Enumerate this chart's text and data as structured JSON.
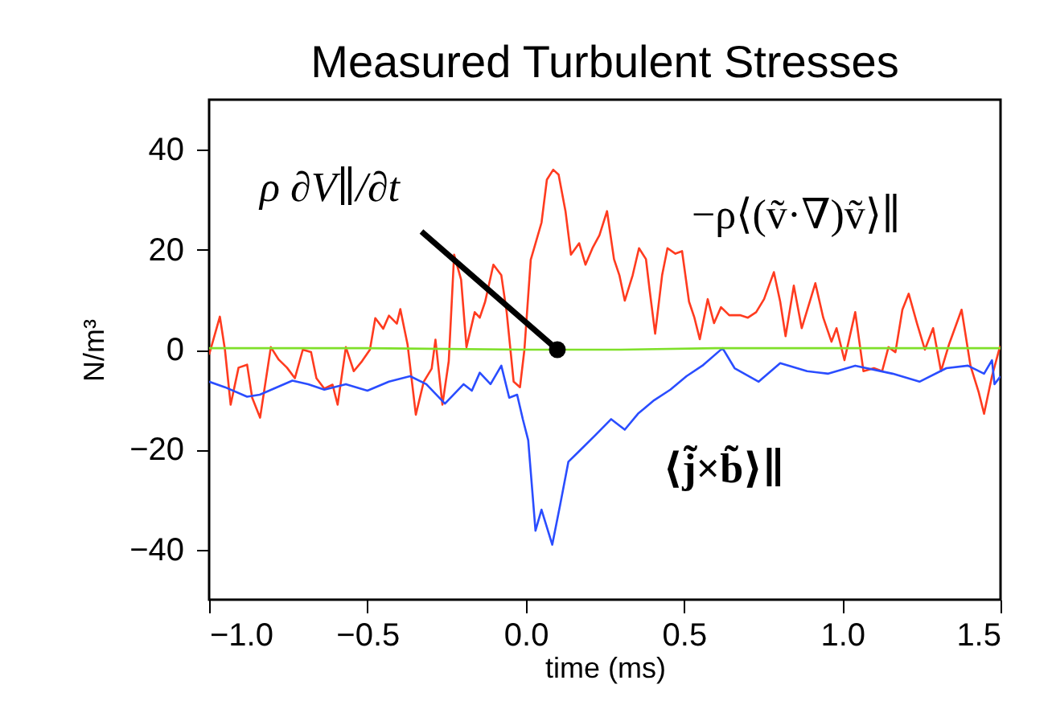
{
  "chart_data": {
    "type": "line",
    "title": "Measured Turbulent Stresses",
    "xlabel": "time (ms)",
    "ylabel": "N/m³",
    "xlim": [
      -1.0,
      1.5
    ],
    "xticks": [
      {
        "value": -1.0,
        "label": "−1.0"
      },
      {
        "value": -0.5,
        "label": "−0.5"
      },
      {
        "value": 0,
        "label": "0.0"
      },
      0.5,
      {
        "value": 1.0,
        "label": "1.0"
      },
      1.5
    ],
    "ylim": [
      -50,
      50
    ],
    "yticks": [
      -40,
      -20,
      0,
      20,
      40
    ],
    "grid": false,
    "annotations": [
      {
        "text": "ρ ∂V∥/∂t",
        "x": 0.1,
        "y": 0
      }
    ],
    "series": [
      {
        "name": "−ρ⟨(ṽ·∇)ṽ⟩∥",
        "color": "#ff3b1f",
        "x": [
          -1.0,
          -0.966,
          -0.95,
          -0.932,
          -0.907,
          -0.88,
          -0.864,
          -0.839,
          -0.805,
          -0.78,
          -0.754,
          -0.729,
          -0.704,
          -0.678,
          -0.661,
          -0.636,
          -0.61,
          -0.594,
          -0.568,
          -0.543,
          -0.517,
          -0.492,
          -0.475,
          -0.45,
          -0.432,
          -0.407,
          -0.396,
          -0.373,
          -0.347,
          -0.322,
          -0.297,
          -0.285,
          -0.263,
          -0.243,
          -0.226,
          -0.204,
          -0.187,
          -0.161,
          -0.145,
          -0.128,
          -0.102,
          -0.077,
          -0.06,
          -0.038,
          -0.018,
          -0.004,
          0.016,
          0.033,
          0.05,
          0.067,
          0.087,
          0.104,
          0.126,
          0.143,
          0.169,
          0.189,
          0.211,
          0.233,
          0.257,
          0.279,
          0.296,
          0.313,
          0.338,
          0.358,
          0.38,
          0.392,
          0.409,
          0.431,
          0.448,
          0.473,
          0.494,
          0.516,
          0.533,
          0.55,
          0.575,
          0.595,
          0.617,
          0.643,
          0.677,
          0.702,
          0.728,
          0.753,
          0.784,
          0.804,
          0.821,
          0.847,
          0.872,
          0.915,
          0.94,
          0.966,
          0.982,
          1.007,
          1.041,
          1.067,
          1.1,
          1.126,
          1.146,
          1.168,
          1.19,
          1.21,
          1.236,
          1.261,
          1.287,
          1.312,
          1.337,
          1.377,
          1.405,
          1.431,
          1.448,
          1.473,
          1.499
        ],
        "values": [
          -1,
          6.6,
          0,
          -11,
          -3.6,
          -3,
          -9.6,
          -13.6,
          0.5,
          -2,
          -3.6,
          -5.7,
          0,
          -0.5,
          -5.7,
          -7.8,
          -7,
          -11,
          0.5,
          -4.3,
          -2.3,
          0,
          6.3,
          4.2,
          6.8,
          5.2,
          8.1,
          1,
          -13,
          -6.4,
          -3.8,
          2,
          -11,
          -2.3,
          19,
          14,
          0.5,
          7.5,
          6.4,
          9.6,
          17,
          14.9,
          7.5,
          -6.4,
          -7.5,
          0,
          18,
          21.7,
          25.4,
          34,
          36,
          35,
          27.6,
          19,
          21.3,
          17,
          20.3,
          22.9,
          27.7,
          18.1,
          14.9,
          9.8,
          14.9,
          20.3,
          18.1,
          11.7,
          3.2,
          14.9,
          20.3,
          19.2,
          19.7,
          9.6,
          6.4,
          2.1,
          10.1,
          5.3,
          8.5,
          6.9,
          6.9,
          6.4,
          7.5,
          10.1,
          15.5,
          9.6,
          2.7,
          12.8,
          4.3,
          13.3,
          6.4,
          1.6,
          4.3,
          -2.1,
          7.5,
          -4.3,
          -3.7,
          -4.3,
          0.5,
          -0.5,
          8,
          11.2,
          5.3,
          0,
          4.3,
          -4.3,
          1,
          8,
          -3.2,
          -8.5,
          -12.8,
          -5.3,
          0.8
        ]
      },
      {
        "name": "⟨j̃×b̃⟩∥",
        "color": "#2a4dff",
        "x": [
          -1.0,
          -0.95,
          -0.88,
          -0.84,
          -0.737,
          -0.687,
          -0.636,
          -0.568,
          -0.5,
          -0.432,
          -0.365,
          -0.314,
          -0.255,
          -0.196,
          -0.17,
          -0.145,
          -0.111,
          -0.077,
          -0.052,
          -0.027,
          -0.009,
          0.008,
          0.031,
          0.05,
          0.084,
          0.109,
          0.135,
          0.169,
          0.22,
          0.27,
          0.313,
          0.355,
          0.406,
          0.457,
          0.508,
          0.558,
          0.622,
          0.66,
          0.736,
          0.804,
          0.889,
          0.956,
          1.041,
          1.159,
          1.244,
          1.329,
          1.397,
          1.448,
          1.473,
          1.481,
          1.5
        ],
        "values": [
          -6.4,
          -7.5,
          -9.4,
          -9,
          -6.2,
          -6.9,
          -8,
          -6.9,
          -8.2,
          -6.4,
          -5.3,
          -6.9,
          -10.8,
          -6.9,
          -8.2,
          -4.6,
          -6.9,
          -3.2,
          -9.6,
          -9,
          -13.9,
          -18.1,
          -36.2,
          -32,
          -39,
          -31,
          -22.4,
          -20.3,
          -17.1,
          -13.9,
          -16,
          -12.8,
          -10.1,
          -8,
          -5.3,
          -3.2,
          0.3,
          -3.7,
          -6.4,
          -2.7,
          -4.3,
          -4.8,
          -3.2,
          -4.8,
          -6.4,
          -3.7,
          -3.2,
          -4.8,
          -2.1,
          -6.9,
          -5.3
        ]
      },
      {
        "color": "#7fe02a",
        "x": [
          -1.0,
          -0.5,
          0.0,
          0.3,
          0.6,
          1.0,
          1.5
        ],
        "values": [
          0.3,
          0.3,
          0,
          0,
          0.3,
          0.3,
          0.3
        ]
      }
    ]
  }
}
